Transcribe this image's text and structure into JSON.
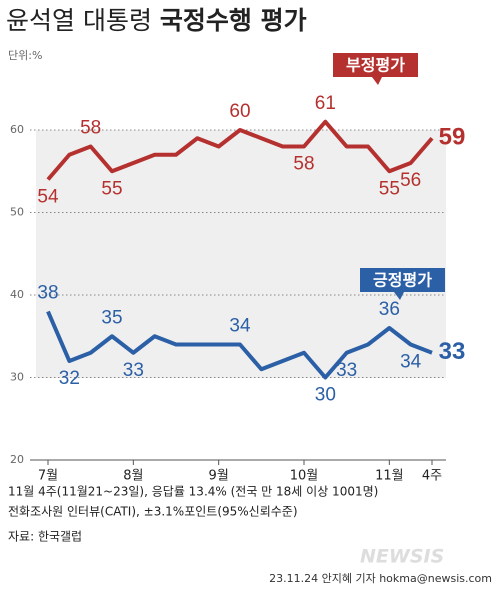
{
  "chart_data": {
    "type": "line",
    "title": [
      "윤석열 대통령",
      "국정수행 평가"
    ],
    "unit": "단위:%",
    "categories": [
      "7월",
      null,
      null,
      null,
      "8월",
      null,
      null,
      null,
      "9월",
      null,
      null,
      null,
      "10월",
      null,
      null,
      null,
      "11월",
      null,
      "4주"
    ],
    "series": [
      {
        "name": "부정평가",
        "color": "#b5312f",
        "values": [
          54,
          57,
          58,
          55,
          56,
          57,
          57,
          59,
          58,
          60,
          59,
          58,
          58,
          61,
          58,
          58,
          55,
          56,
          59
        ]
      },
      {
        "name": "긍정평가",
        "color": "#2b5fa6",
        "values": [
          38,
          32,
          33,
          35,
          33,
          35,
          34,
          34,
          34,
          34,
          31,
          32,
          33,
          30,
          33,
          34,
          36,
          34,
          33
        ]
      }
    ],
    "ylim": [
      20,
      65
    ],
    "yticks": [
      20,
      30,
      40,
      50,
      60
    ],
    "grid": true,
    "notes": [
      "11월 4주(11월21~23일), 응답률 13.4% (전국 만 18세 이상 1001명)",
      "전화조사원 인터뷰(CATI), ±3.1%포인트(95%신뢰수준)"
    ],
    "source": "자료: 한국갤럽",
    "credit": "23.11.24 안지혜 기자 hokma@newsis.com",
    "watermark": "NEWSIS"
  }
}
